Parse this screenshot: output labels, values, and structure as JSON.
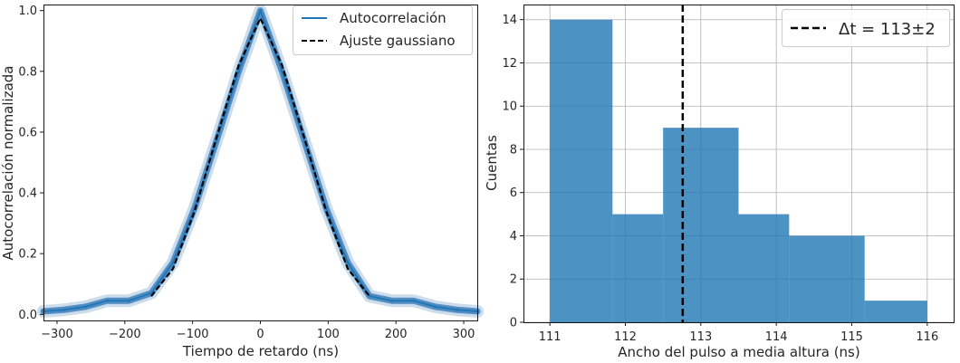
{
  "chart_data": [
    {
      "type": "line",
      "xlabel": "Tiempo de retardo (ns)",
      "ylabel": "Autocorrelación normalizada",
      "xlim": [
        -320,
        320
      ],
      "ylim": [
        -0.02,
        1.02
      ],
      "xticks": [
        -300,
        -200,
        -100,
        0,
        100,
        200,
        300
      ],
      "yticks": [
        0.0,
        0.2,
        0.4,
        0.6,
        0.8,
        1.0
      ],
      "xtick_labels": [
        "−300",
        "−200",
        "−100",
        "0",
        "100",
        "200",
        "300"
      ],
      "ytick_labels": [
        "0.0",
        "0.2",
        "0.4",
        "0.6",
        "0.8",
        "1.0"
      ],
      "grid": false,
      "legend_position": "top-right",
      "series": [
        {
          "name": "Autocorrelación",
          "color": "#1f77b4",
          "style": "solid",
          "x": [
            -320,
            -290,
            -258,
            -226,
            -194,
            -161,
            -129,
            -97,
            -65,
            -32,
            0,
            32,
            65,
            97,
            129,
            161,
            194,
            226,
            258,
            290,
            320
          ],
          "y": [
            0.01,
            0.015,
            0.025,
            0.045,
            0.045,
            0.07,
            0.17,
            0.35,
            0.57,
            0.8,
            1.0,
            0.8,
            0.57,
            0.35,
            0.17,
            0.06,
            0.045,
            0.045,
            0.025,
            0.015,
            0.01
          ]
        },
        {
          "name": "Ajuste gaussiano",
          "color": "#000000",
          "style": "dashed",
          "x": [
            -161,
            -129,
            -97,
            -65,
            -32,
            0,
            32,
            65,
            97,
            129,
            161
          ],
          "y": [
            0.06,
            0.15,
            0.34,
            0.58,
            0.82,
            0.975,
            0.82,
            0.58,
            0.34,
            0.15,
            0.06
          ]
        }
      ]
    },
    {
      "type": "bar",
      "subtype": "histogram",
      "xlabel": "Ancho del pulso a media altura (ns)",
      "ylabel": "Cuentas",
      "xlim": [
        110.65,
        116.35
      ],
      "ylim": [
        0,
        14.7
      ],
      "xticks": [
        111,
        112,
        113,
        114,
        115,
        116
      ],
      "yticks": [
        0,
        2,
        4,
        6,
        8,
        10,
        12,
        14
      ],
      "grid": true,
      "bar_color": "#1f77b4",
      "bins": [
        {
          "start": 111.0,
          "end": 111.83,
          "count": 14
        },
        {
          "start": 111.83,
          "end": 112.5,
          "count": 5
        },
        {
          "start": 112.5,
          "end": 113.5,
          "count": 9
        },
        {
          "start": 113.5,
          "end": 114.17,
          "count": 5
        },
        {
          "start": 114.17,
          "end": 115.17,
          "count": 4
        },
        {
          "start": 115.17,
          "end": 116.0,
          "count": 1
        }
      ],
      "vline": {
        "x": 112.76,
        "color": "#000000",
        "style": "dashed"
      },
      "legend_label": "Δt = 113±2",
      "legend_position": "top-right"
    }
  ]
}
